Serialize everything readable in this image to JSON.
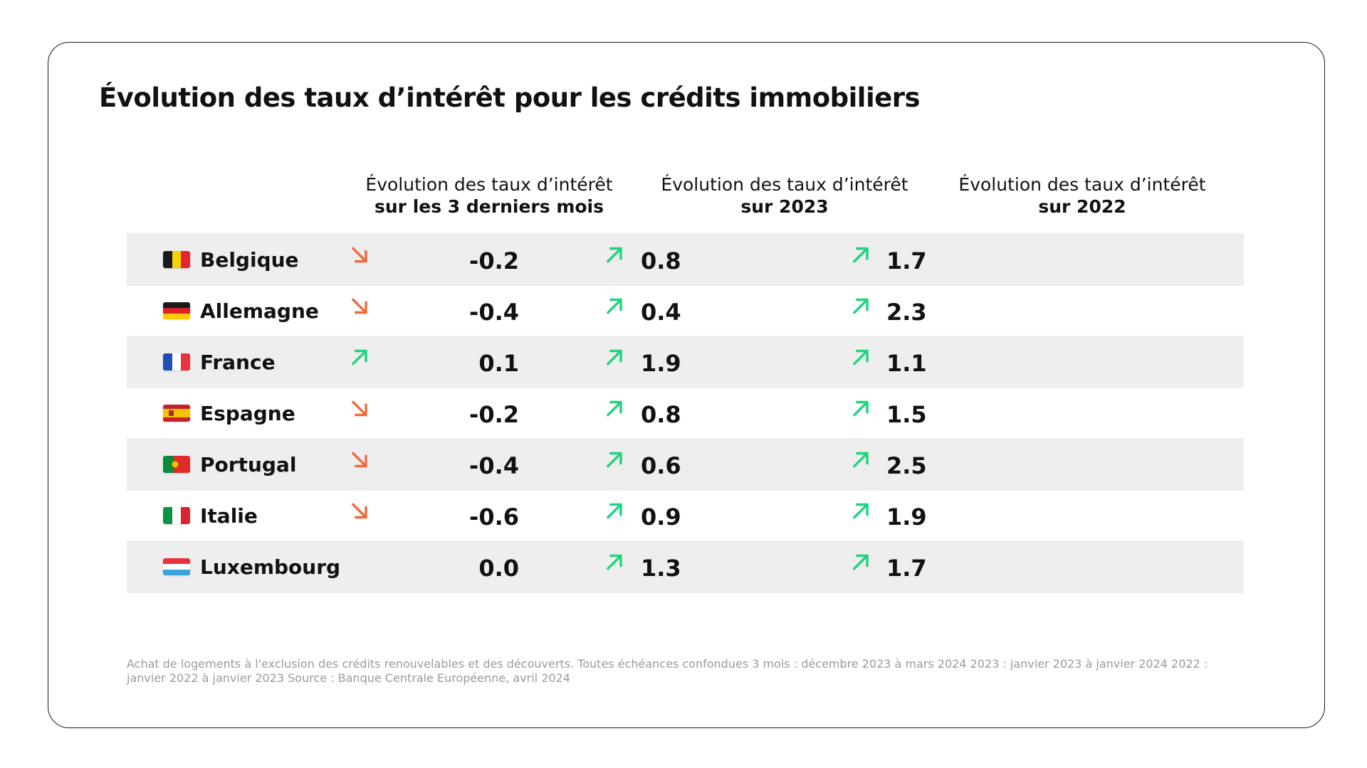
{
  "title": "Évolution des taux d’intérêt pour les crédits immobiliers",
  "colors": {
    "up": "#1ed47f",
    "down": "#ee6a3b",
    "row_shade": "#eeeeee"
  },
  "headers": [
    {
      "main": "Évolution des taux d’intérêt",
      "sub": "sur les 3 derniers mois"
    },
    {
      "main": "Évolution des taux d’intérêt",
      "sub": "sur 2023"
    },
    {
      "main": "Évolution des taux d’intérêt",
      "sub": "sur 2022"
    }
  ],
  "rows": [
    {
      "country": "Belgique",
      "flag": "be",
      "cells": [
        {
          "value": "-0.2",
          "trend": "down"
        },
        {
          "value": "0.8",
          "trend": "up"
        },
        {
          "value": "1.7",
          "trend": "up"
        }
      ]
    },
    {
      "country": "Allemagne",
      "flag": "de",
      "cells": [
        {
          "value": "-0.4",
          "trend": "down"
        },
        {
          "value": "0.4",
          "trend": "up"
        },
        {
          "value": "2.3",
          "trend": "up"
        }
      ]
    },
    {
      "country": "France",
      "flag": "fr",
      "cells": [
        {
          "value": "0.1",
          "trend": "up"
        },
        {
          "value": "1.9",
          "trend": "up"
        },
        {
          "value": "1.1",
          "trend": "up"
        }
      ]
    },
    {
      "country": "Espagne",
      "flag": "es",
      "cells": [
        {
          "value": "-0.2",
          "trend": "down"
        },
        {
          "value": "0.8",
          "trend": "up"
        },
        {
          "value": "1.5",
          "trend": "up"
        }
      ]
    },
    {
      "country": "Portugal",
      "flag": "pt",
      "cells": [
        {
          "value": "-0.4",
          "trend": "down"
        },
        {
          "value": "0.6",
          "trend": "up"
        },
        {
          "value": "2.5",
          "trend": "up"
        }
      ]
    },
    {
      "country": "Italie",
      "flag": "it",
      "cells": [
        {
          "value": "-0.6",
          "trend": "down"
        },
        {
          "value": "0.9",
          "trend": "up"
        },
        {
          "value": "1.9",
          "trend": "up"
        }
      ]
    },
    {
      "country": "Luxembourg",
      "flag": "lu",
      "cells": [
        {
          "value": "0.0",
          "trend": "none"
        },
        {
          "value": "1.3",
          "trend": "up"
        },
        {
          "value": "1.7",
          "trend": "up"
        }
      ]
    }
  ],
  "footnote": "Achat de logements à l'exclusion des crédits renouvelables et des découverts. Toutes échéances confondues 3 mois : décembre 2023 à mars 2024 2023 : janvier 2023 à janvier 2024 2022 : janvier 2022 à janvier 2023 Source : Banque Centrale Européenne, avril 2024",
  "chart_data": {
    "type": "table",
    "title": "Évolution des taux d’intérêt pour les crédits immobiliers",
    "columns": [
      "Évolution des taux d’intérêt sur les 3 derniers mois",
      "Évolution des taux d’intérêt sur 2023",
      "Évolution des taux d’intérêt sur 2022"
    ],
    "categories": [
      "Belgique",
      "Allemagne",
      "France",
      "Espagne",
      "Portugal",
      "Italie",
      "Luxembourg"
    ],
    "series": [
      {
        "name": "sur les 3 derniers mois",
        "values": [
          -0.2,
          -0.4,
          0.1,
          -0.2,
          -0.4,
          -0.6,
          0.0
        ]
      },
      {
        "name": "sur 2023",
        "values": [
          0.8,
          0.4,
          1.9,
          0.8,
          0.6,
          0.9,
          1.3
        ]
      },
      {
        "name": "sur 2022",
        "values": [
          1.7,
          2.3,
          1.1,
          1.5,
          2.5,
          1.9,
          1.7
        ]
      }
    ]
  }
}
